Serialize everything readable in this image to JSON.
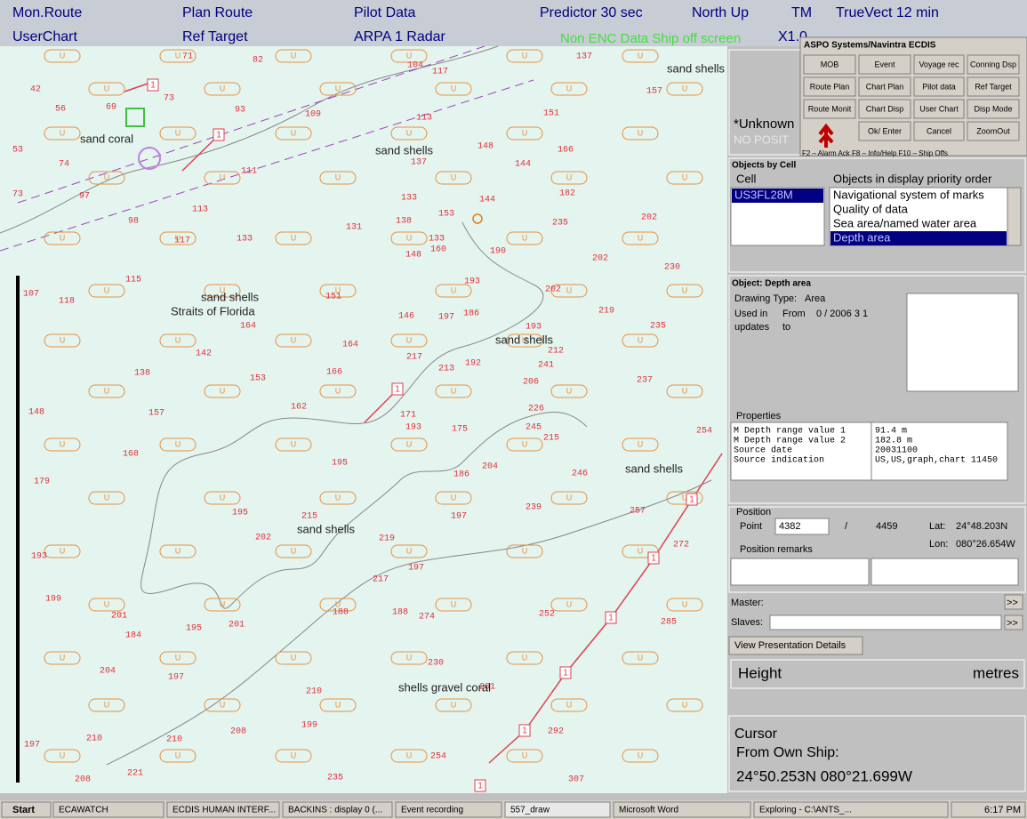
{
  "top_bar": {
    "row1": [
      "Mon.Route",
      "Plan Route",
      "Pilot Data",
      "Predictor  30  sec",
      "North Up",
      "TM",
      "TrueVect  12 min"
    ],
    "row2": [
      "UserChart",
      "Ref Target",
      "ARPA 1  Radar",
      "X1.0"
    ],
    "warning": "Non ENC Data   Ship off screen"
  },
  "chart": {
    "labels": [
      "sand coral",
      "sand shells",
      "sand shells",
      "Straits of Florida",
      "sand shells",
      "sand shells",
      "sand shells",
      "sand shells",
      "shells gravel coral"
    ],
    "soundings": [
      "71",
      "82",
      "104",
      "117",
      "137",
      "157",
      "42",
      "73",
      "56",
      "69",
      "93",
      "109",
      "113",
      "151",
      "53",
      "74",
      "148",
      "166",
      "137",
      "144",
      "111",
      "73",
      "97",
      "133",
      "144",
      "182",
      "113",
      "98",
      "138",
      "153",
      "235",
      "202",
      "117",
      "133",
      "131",
      "133",
      "160",
      "190",
      "148",
      "202",
      "230",
      "115",
      "107",
      "118",
      "151",
      "193",
      "202",
      "219",
      "146",
      "197",
      "186",
      "193",
      "235",
      "164",
      "142",
      "164",
      "217",
      "212",
      "192",
      "241",
      "138",
      "166",
      "153",
      "213",
      "206",
      "237",
      "226",
      "148",
      "157",
      "162",
      "171",
      "193",
      "175",
      "245",
      "215",
      "254",
      "168",
      "195",
      "204",
      "246",
      "179",
      "186",
      "239",
      "257",
      "195",
      "215",
      "197",
      "202",
      "219",
      "272",
      "193",
      "197",
      "217",
      "199",
      "188",
      "188",
      "274",
      "252",
      "285",
      "201",
      "201",
      "195",
      "184",
      "230",
      "204",
      "197",
      "210",
      "261",
      "199",
      "208",
      "292",
      "210",
      "210",
      "197",
      "254",
      "221",
      "235",
      "307",
      "208"
    ],
    "buoy_symbol": "U",
    "route_marker": "1"
  },
  "ecdis_panel": {
    "title": "ASPO Systems/Navintra  ECDIS",
    "buttons": [
      [
        "MOB",
        "Event",
        "Voyage rec",
        "Conning Dsp"
      ],
      [
        "Route Plan",
        "Chart Plan",
        "Pilot data",
        "Ref Target"
      ],
      [
        "Route Monit",
        "Chart Disp",
        "User Chart",
        "Disp Mode"
      ],
      [
        "Ok/ Enter",
        "Cancel",
        "ZoomOut"
      ]
    ],
    "footer": "F2 – Alarm Ack   F8 – Info/Help   F10 – Ship Offs"
  },
  "status": {
    "unknown": "*Unknown",
    "no_position": "NO POSIT"
  },
  "objects_by_cell": {
    "title": "Objects by Cell",
    "cell_header": "Cell",
    "objects_header": "Objects in display priority order",
    "cell": "US3FL28M",
    "objects": [
      "Navigational system of marks",
      "Quality of data",
      "Sea area/named water area",
      "Depth area"
    ]
  },
  "object_panel": {
    "title": "Object: Depth area",
    "drawing_type_label": "Drawing Type:",
    "drawing_type": "Area",
    "used_in": "Used in",
    "updates": "updates",
    "from": "From",
    "from_value": "0 / 2006  3  1",
    "to": "to",
    "properties_title": "Properties",
    "properties": [
      [
        "M Depth range value 1",
        "91.4 m"
      ],
      [
        "M Depth range value 2",
        "182.8 m"
      ],
      [
        "  Source date",
        "20031100"
      ],
      [
        "  Source indication",
        "US,US,graph,chart 11450"
      ]
    ]
  },
  "position_panel": {
    "title": "Position",
    "point_label": "Point",
    "point": "4382",
    "separator": "/",
    "total": "4459",
    "lat_label": "Lat:",
    "lat": "24°48.203N",
    "lon_label": "Lon:",
    "lon": "080°26.654W",
    "remarks": "Position remarks"
  },
  "master_label": "Master:",
  "slaves_label": "Slaves:",
  "more": ">>",
  "view_details": "View Presentation Details",
  "height": {
    "label": "Height",
    "unit": "metres"
  },
  "cursor": {
    "title": "Cursor",
    "from": "From Own Ship:",
    "position": "24°50.253N  080°21.699W"
  },
  "taskbar": {
    "start": "Start",
    "items": [
      "ECAWATCH",
      "ECDIS HUMAN INTERF...",
      "BACKINS : display 0 (...",
      "Event recording",
      "557_draw",
      "Microsoft Word",
      "Exploring - C:\\ANTS_..."
    ],
    "clock": "6:17 PM"
  }
}
